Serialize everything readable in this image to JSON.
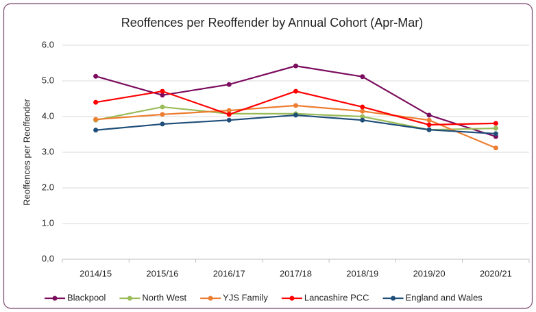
{
  "chart_data": {
    "type": "line",
    "title": "Reoffences per Reoffender by Annual Cohort (Apr-Mar)",
    "y_label": "Reoffences per Reoffender",
    "categories": [
      "2014/15",
      "2015/16",
      "2016/17",
      "2017/18",
      "2018/19",
      "2019/20",
      "2020/21"
    ],
    "series": [
      {
        "name": "Blackpool",
        "color": "#7b0c5e",
        "values": [
          5.13,
          4.6,
          4.9,
          5.42,
          5.12,
          4.04,
          3.44
        ]
      },
      {
        "name": "North West",
        "color": "#9bbb59",
        "values": [
          3.9,
          4.27,
          4.08,
          4.08,
          4.0,
          3.63,
          3.67
        ]
      },
      {
        "name": "YJS Family",
        "color": "#ed7d31",
        "values": [
          3.92,
          4.06,
          4.17,
          4.31,
          4.15,
          3.9,
          3.12
        ]
      },
      {
        "name": "Lancashire PCC",
        "color": "#ff0000",
        "values": [
          4.4,
          4.71,
          4.06,
          4.71,
          4.27,
          3.77,
          3.81
        ]
      },
      {
        "name": "England and Wales",
        "color": "#1f4e79",
        "values": [
          3.62,
          3.79,
          3.9,
          4.04,
          3.9,
          3.63,
          3.52
        ]
      }
    ],
    "ylim": [
      0,
      6
    ],
    "yticks": [
      {
        "value": 0,
        "label": "0.0"
      },
      {
        "value": 1,
        "label": "1.0"
      },
      {
        "value": 2,
        "label": "2.0"
      },
      {
        "value": 3,
        "label": "3.0"
      },
      {
        "value": 4,
        "label": "4.0"
      },
      {
        "value": 5,
        "label": "5.0"
      },
      {
        "value": 6,
        "label": "6.0"
      }
    ],
    "grid": true,
    "legend": "bottom"
  }
}
